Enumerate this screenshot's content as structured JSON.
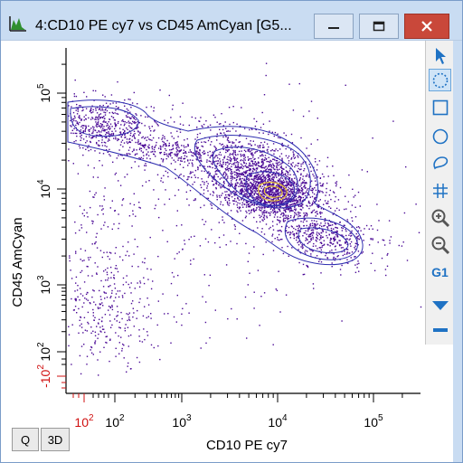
{
  "window": {
    "title": "4:CD10 PE cy7 vs CD45 AmCyan [G5...",
    "colors": {
      "titlebar": "#c9dcf2",
      "close": "#c9483a",
      "dots": "#4b0a96",
      "contour": "#2e2eb0",
      "contour_core": "#e8c23a",
      "negative_axis": "#d01010"
    }
  },
  "plot": {
    "xlabel": "CD10 PE cy7",
    "ylabel": "CD45 AmCyan",
    "x_ticks": [
      {
        "label": "10",
        "sup": "2",
        "negative": true
      },
      {
        "label": "10",
        "sup": "2",
        "negative": false
      },
      {
        "label": "10",
        "sup": "3",
        "negative": false
      },
      {
        "label": "10",
        "sup": "4",
        "negative": false
      },
      {
        "label": "10",
        "sup": "5",
        "negative": false
      }
    ],
    "y_ticks": [
      {
        "label": "-10",
        "sup": "2",
        "negative": true
      },
      {
        "label": "10",
        "sup": "2",
        "negative": false
      },
      {
        "label": "10",
        "sup": "3",
        "negative": false
      },
      {
        "label": "10",
        "sup": "4",
        "negative": false
      },
      {
        "label": "10",
        "sup": "5",
        "negative": false
      }
    ]
  },
  "tools": [
    {
      "name": "pointer-tool-button",
      "icon": "arrow-pointer-icon"
    },
    {
      "name": "polygon-gate-tool-button",
      "icon": "dotted-circle-icon"
    },
    {
      "name": "rectangle-gate-tool-button",
      "icon": "rectangle-icon"
    },
    {
      "name": "ellipse-gate-tool-button",
      "icon": "circle-icon"
    },
    {
      "name": "freehand-gate-tool-button",
      "icon": "lasso-icon"
    },
    {
      "name": "quadrant-gate-tool-button",
      "icon": "hash-icon"
    },
    {
      "name": "zoom-in-button",
      "icon": "zoom-in-icon"
    },
    {
      "name": "zoom-out-button",
      "icon": "zoom-out-icon"
    },
    {
      "name": "gate-label-button",
      "label": "G1"
    },
    {
      "name": "dropdown-arrow-button",
      "icon": "triangle-down-icon"
    },
    {
      "name": "collapse-button",
      "icon": "minus-icon"
    }
  ],
  "bottom_buttons": {
    "q": "Q",
    "three_d": "3D"
  }
}
